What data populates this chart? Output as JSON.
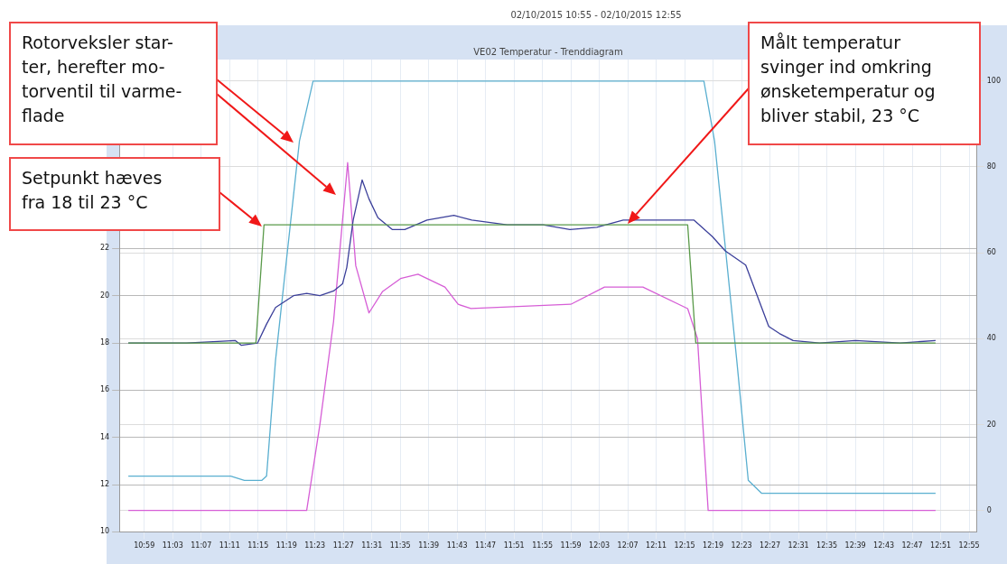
{
  "chart_data": {
    "type": "line",
    "title": "VE02 Temperatur - Trenddiagram",
    "subtitle": "02/10/2015 10:55 - 02/10/2015 12:55",
    "annotations": [
      "Rotorveksler star-\nter, herefter mo-\ntorventil til varme-\nflade",
      "Setpunkt hæves\nfra 18 til 23 °C",
      "Målt temperatur\nsvinger ind omkring\nønsketemperatur og\nbliver stabil, 23 °C"
    ],
    "xlim": [
      10.925,
      12.935
    ],
    "xticks": [
      {
        "value": 10.9833,
        "label": "10:59"
      },
      {
        "value": 11.05,
        "label": "11:03"
      },
      {
        "value": 11.1167,
        "label": "11:07"
      },
      {
        "value": 11.1833,
        "label": "11:11"
      },
      {
        "value": 11.25,
        "label": "11:15"
      },
      {
        "value": 11.3167,
        "label": "11:19"
      },
      {
        "value": 11.3833,
        "label": "11:23"
      },
      {
        "value": 11.45,
        "label": "11:27"
      },
      {
        "value": 11.5167,
        "label": "11:31"
      },
      {
        "value": 11.5833,
        "label": "11:35"
      },
      {
        "value": 11.65,
        "label": "11:39"
      },
      {
        "value": 11.7167,
        "label": "11:43"
      },
      {
        "value": 11.7833,
        "label": "11:47"
      },
      {
        "value": 11.85,
        "label": "11:51"
      },
      {
        "value": 11.9167,
        "label": "11:55"
      },
      {
        "value": 11.9833,
        "label": "11:59"
      },
      {
        "value": 12.05,
        "label": "12:03"
      },
      {
        "value": 12.1167,
        "label": "12:07"
      },
      {
        "value": 12.1833,
        "label": "12:11"
      },
      {
        "value": 12.25,
        "label": "12:15"
      },
      {
        "value": 12.3167,
        "label": "12:19"
      },
      {
        "value": 12.3833,
        "label": "12:23"
      },
      {
        "value": 12.45,
        "label": "12:27"
      },
      {
        "value": 12.5167,
        "label": "12:31"
      },
      {
        "value": 12.5833,
        "label": "12:35"
      },
      {
        "value": 12.65,
        "label": "12:39"
      },
      {
        "value": 12.7167,
        "label": "12:43"
      },
      {
        "value": 12.7833,
        "label": "12:47"
      },
      {
        "value": 12.85,
        "label": "12:51"
      },
      {
        "value": 12.9167,
        "label": "12:55"
      }
    ],
    "ylim": [
      10,
      30
    ],
    "yticks": [
      10,
      12,
      14,
      16,
      18,
      20,
      22
    ],
    "y2lim": [
      -5,
      105
    ],
    "y2ticks": [
      0,
      20,
      40,
      60,
      80,
      100
    ],
    "grid": true,
    "legend": false,
    "marker": "none",
    "line_style": "solid",
    "series": [
      {
        "color": "#5a9a4a",
        "x": [
          10.946,
          11.245,
          11.264,
          12.257,
          12.276,
          12.838
        ],
        "values": [
          18,
          18,
          23,
          23,
          18,
          18
        ]
      },
      {
        "color": "#3b3f9a",
        "x": [
          10.946,
          11.082,
          11.197,
          11.211,
          11.249,
          11.27,
          11.291,
          11.333,
          11.364,
          11.395,
          11.427,
          11.448,
          11.458,
          11.473,
          11.494,
          11.51,
          11.531,
          11.565,
          11.594,
          11.646,
          11.709,
          11.751,
          11.834,
          11.918,
          11.981,
          12.044,
          12.106,
          12.169,
          12.272,
          12.315,
          12.345,
          12.393,
          12.447,
          12.472,
          12.504,
          12.566,
          12.65,
          12.755,
          12.838
        ],
        "values": [
          18.0,
          18.0,
          18.1,
          17.9,
          18.0,
          18.8,
          19.5,
          20.0,
          20.1,
          20.0,
          20.2,
          20.5,
          21.2,
          23.2,
          24.9,
          24.1,
          23.3,
          22.8,
          22.8,
          23.2,
          23.4,
          23.2,
          23.0,
          23.0,
          22.8,
          22.9,
          23.2,
          23.2,
          23.2,
          22.5,
          21.9,
          21.3,
          18.7,
          18.4,
          18.1,
          18.0,
          18.1,
          18.0,
          18.1
        ]
      },
      {
        "color": "#d65ed6",
        "axis": "y2",
        "x": [
          10.946,
          11.364,
          11.395,
          11.427,
          11.46,
          11.479,
          11.51,
          11.542,
          11.584,
          11.625,
          11.688,
          11.719,
          11.749,
          11.983,
          12.062,
          12.152,
          12.257,
          12.28,
          12.305,
          12.838
        ],
        "values": [
          0,
          0,
          20,
          44,
          81,
          57,
          46,
          51,
          54,
          55,
          52,
          48,
          47,
          48,
          52,
          52,
          47,
          40,
          0,
          0
        ]
      },
      {
        "color": "#5aafd0",
        "axis": "y2",
        "x": [
          10.946,
          11.186,
          11.218,
          11.259,
          11.27,
          11.291,
          11.347,
          11.379,
          12.295,
          12.32,
          12.372,
          12.399,
          12.43,
          12.462,
          12.838
        ],
        "values": [
          8,
          8,
          7,
          7,
          8,
          35,
          86,
          100,
          100,
          86,
          35,
          7,
          4,
          4,
          4
        ]
      }
    ]
  }
}
